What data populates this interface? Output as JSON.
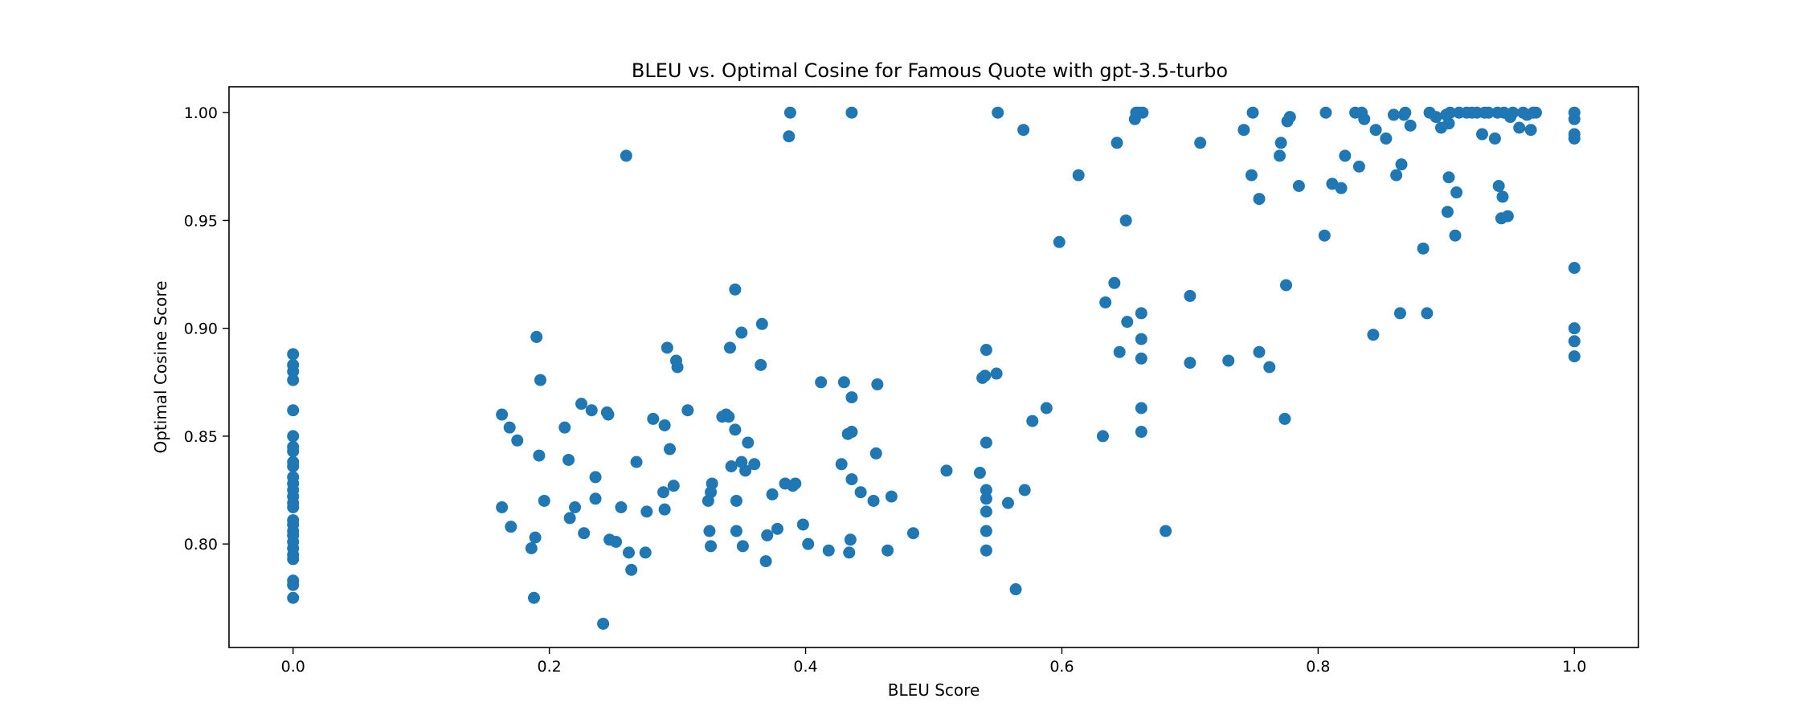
{
  "chart_data": {
    "type": "scatter",
    "title": "BLEU vs. Optimal Cosine for Famous Quote with gpt-3.5-turbo",
    "xlabel": "BLEU Score",
    "ylabel": "Optimal Cosine Score",
    "xlim": [
      -0.05,
      1.05
    ],
    "ylim": [
      1.012,
      0.752
    ],
    "y_inverted": true,
    "xticks": [
      0.0,
      0.2,
      0.4,
      0.6,
      0.8,
      1.0
    ],
    "xtick_labels": [
      "0.0",
      "0.2",
      "0.4",
      "0.6",
      "0.8",
      "1.0"
    ],
    "yticks": [
      0.8,
      0.85,
      0.9,
      0.95,
      1.0
    ],
    "ytick_labels": [
      "0.80",
      "0.85",
      "0.90",
      "0.95",
      "1.00"
    ],
    "grid": false,
    "marker_color": "#1f77b4",
    "points": [
      [
        0.0,
        0.775
      ],
      [
        0.0,
        0.781
      ],
      [
        0.0,
        0.783
      ],
      [
        0.0,
        0.793
      ],
      [
        0.0,
        0.795
      ],
      [
        0.0,
        0.798
      ],
      [
        0.0,
        0.801
      ],
      [
        0.0,
        0.804
      ],
      [
        0.0,
        0.806
      ],
      [
        0.0,
        0.809
      ],
      [
        0.0,
        0.811
      ],
      [
        0.0,
        0.817
      ],
      [
        0.0,
        0.819
      ],
      [
        0.0,
        0.822
      ],
      [
        0.0,
        0.825
      ],
      [
        0.0,
        0.828
      ],
      [
        0.0,
        0.831
      ],
      [
        0.0,
        0.836
      ],
      [
        0.0,
        0.838
      ],
      [
        0.0,
        0.843
      ],
      [
        0.0,
        0.845
      ],
      [
        0.0,
        0.85
      ],
      [
        0.0,
        0.862
      ],
      [
        0.0,
        0.876
      ],
      [
        0.0,
        0.88
      ],
      [
        0.0,
        0.883
      ],
      [
        0.0,
        0.888
      ],
      [
        0.163,
        0.817
      ],
      [
        0.163,
        0.86
      ],
      [
        0.169,
        0.854
      ],
      [
        0.17,
        0.808
      ],
      [
        0.175,
        0.848
      ],
      [
        0.186,
        0.798
      ],
      [
        0.188,
        0.775
      ],
      [
        0.189,
        0.803
      ],
      [
        0.19,
        0.896
      ],
      [
        0.192,
        0.841
      ],
      [
        0.193,
        0.876
      ],
      [
        0.196,
        0.82
      ],
      [
        0.212,
        0.854
      ],
      [
        0.215,
        0.839
      ],
      [
        0.216,
        0.812
      ],
      [
        0.22,
        0.817
      ],
      [
        0.225,
        0.865
      ],
      [
        0.227,
        0.805
      ],
      [
        0.233,
        0.862
      ],
      [
        0.236,
        0.821
      ],
      [
        0.236,
        0.831
      ],
      [
        0.242,
        0.763
      ],
      [
        0.245,
        0.861
      ],
      [
        0.246,
        0.86
      ],
      [
        0.247,
        0.802
      ],
      [
        0.252,
        0.801
      ],
      [
        0.256,
        0.817
      ],
      [
        0.26,
        0.98
      ],
      [
        0.262,
        0.796
      ],
      [
        0.264,
        0.788
      ],
      [
        0.268,
        0.838
      ],
      [
        0.275,
        0.796
      ],
      [
        0.276,
        0.815
      ],
      [
        0.281,
        0.858
      ],
      [
        0.289,
        0.824
      ],
      [
        0.29,
        0.855
      ],
      [
        0.29,
        0.816
      ],
      [
        0.292,
        0.891
      ],
      [
        0.294,
        0.844
      ],
      [
        0.297,
        0.827
      ],
      [
        0.299,
        0.885
      ],
      [
        0.3,
        0.882
      ],
      [
        0.308,
        0.862
      ],
      [
        0.324,
        0.82
      ],
      [
        0.325,
        0.806
      ],
      [
        0.326,
        0.799
      ],
      [
        0.326,
        0.824
      ],
      [
        0.327,
        0.828
      ],
      [
        0.335,
        0.859
      ],
      [
        0.338,
        0.86
      ],
      [
        0.34,
        0.859
      ],
      [
        0.341,
        0.891
      ],
      [
        0.342,
        0.836
      ],
      [
        0.345,
        0.853
      ],
      [
        0.345,
        0.918
      ],
      [
        0.346,
        0.806
      ],
      [
        0.346,
        0.82
      ],
      [
        0.35,
        0.898
      ],
      [
        0.35,
        0.838
      ],
      [
        0.351,
        0.799
      ],
      [
        0.353,
        0.834
      ],
      [
        0.355,
        0.847
      ],
      [
        0.36,
        0.837
      ],
      [
        0.365,
        0.883
      ],
      [
        0.366,
        0.902
      ],
      [
        0.369,
        0.792
      ],
      [
        0.37,
        0.804
      ],
      [
        0.374,
        0.823
      ],
      [
        0.378,
        0.807
      ],
      [
        0.384,
        0.828
      ],
      [
        0.387,
        0.989
      ],
      [
        0.388,
        1.0
      ],
      [
        0.39,
        0.827
      ],
      [
        0.392,
        0.828
      ],
      [
        0.398,
        0.809
      ],
      [
        0.402,
        0.8
      ],
      [
        0.412,
        0.875
      ],
      [
        0.418,
        0.797
      ],
      [
        0.428,
        0.837
      ],
      [
        0.43,
        0.875
      ],
      [
        0.433,
        0.851
      ],
      [
        0.434,
        0.796
      ],
      [
        0.435,
        0.802
      ],
      [
        0.436,
        0.852
      ],
      [
        0.436,
        0.868
      ],
      [
        0.436,
        0.83
      ],
      [
        0.436,
        1.0
      ],
      [
        0.443,
        0.824
      ],
      [
        0.453,
        0.82
      ],
      [
        0.455,
        0.842
      ],
      [
        0.456,
        0.874
      ],
      [
        0.464,
        0.797
      ],
      [
        0.467,
        0.822
      ],
      [
        0.484,
        0.805
      ],
      [
        0.51,
        0.834
      ],
      [
        0.536,
        0.833
      ],
      [
        0.538,
        0.877
      ],
      [
        0.54,
        0.878
      ],
      [
        0.541,
        0.847
      ],
      [
        0.541,
        0.821
      ],
      [
        0.541,
        0.815
      ],
      [
        0.541,
        0.806
      ],
      [
        0.541,
        0.825
      ],
      [
        0.541,
        0.797
      ],
      [
        0.541,
        0.89
      ],
      [
        0.549,
        0.879
      ],
      [
        0.55,
        1.0
      ],
      [
        0.558,
        0.819
      ],
      [
        0.564,
        0.779
      ],
      [
        0.57,
        0.992
      ],
      [
        0.571,
        0.825
      ],
      [
        0.577,
        0.857
      ],
      [
        0.588,
        0.863
      ],
      [
        0.598,
        0.94
      ],
      [
        0.613,
        0.971
      ],
      [
        0.632,
        0.85
      ],
      [
        0.634,
        0.912
      ],
      [
        0.641,
        0.921
      ],
      [
        0.643,
        0.986
      ],
      [
        0.645,
        0.889
      ],
      [
        0.65,
        0.95
      ],
      [
        0.651,
        0.903
      ],
      [
        0.657,
        0.997
      ],
      [
        0.658,
        1.0
      ],
      [
        0.66,
        1.0
      ],
      [
        0.662,
        0.852
      ],
      [
        0.662,
        0.863
      ],
      [
        0.662,
        0.886
      ],
      [
        0.662,
        0.895
      ],
      [
        0.662,
        0.907
      ],
      [
        0.663,
        1.0
      ],
      [
        0.681,
        0.806
      ],
      [
        0.7,
        0.884
      ],
      [
        0.7,
        0.915
      ],
      [
        0.708,
        0.986
      ],
      [
        0.73,
        0.885
      ],
      [
        0.742,
        0.992
      ],
      [
        0.748,
        0.971
      ],
      [
        0.749,
        1.0
      ],
      [
        0.754,
        0.96
      ],
      [
        0.754,
        0.889
      ],
      [
        0.762,
        0.882
      ],
      [
        0.77,
        0.98
      ],
      [
        0.771,
        0.986
      ],
      [
        0.774,
        0.858
      ],
      [
        0.775,
        0.92
      ],
      [
        0.776,
        0.996
      ],
      [
        0.778,
        0.998
      ],
      [
        0.785,
        0.966
      ],
      [
        0.805,
        0.943
      ],
      [
        0.806,
        1.0
      ],
      [
        0.811,
        0.967
      ],
      [
        0.818,
        0.965
      ],
      [
        0.821,
        0.98
      ],
      [
        0.829,
        1.0
      ],
      [
        0.832,
        0.975
      ],
      [
        0.834,
        1.0
      ],
      [
        0.836,
        0.997
      ],
      [
        0.843,
        0.897
      ],
      [
        0.845,
        0.992
      ],
      [
        0.853,
        0.988
      ],
      [
        0.859,
        0.999
      ],
      [
        0.861,
        0.971
      ],
      [
        0.864,
        0.907
      ],
      [
        0.865,
        0.976
      ],
      [
        0.867,
        0.999
      ],
      [
        0.868,
        1.0
      ],
      [
        0.872,
        0.994
      ],
      [
        0.882,
        0.937
      ],
      [
        0.885,
        0.907
      ],
      [
        0.887,
        1.0
      ],
      [
        0.892,
        0.998
      ],
      [
        0.896,
        0.993
      ],
      [
        0.9,
        0.999
      ],
      [
        0.901,
        0.954
      ],
      [
        0.902,
        0.97
      ],
      [
        0.902,
        0.995
      ],
      [
        0.903,
        1.0
      ],
      [
        0.907,
        0.943
      ],
      [
        0.908,
        0.963
      ],
      [
        0.91,
        1.0
      ],
      [
        0.916,
        1.0
      ],
      [
        0.92,
        1.0
      ],
      [
        0.924,
        1.0
      ],
      [
        0.928,
        0.99
      ],
      [
        0.93,
        1.0
      ],
      [
        0.933,
        1.0
      ],
      [
        0.938,
        0.988
      ],
      [
        0.94,
        1.0
      ],
      [
        0.941,
        0.966
      ],
      [
        0.943,
        0.951
      ],
      [
        0.944,
        0.961
      ],
      [
        0.945,
        1.0
      ],
      [
        0.948,
        0.952
      ],
      [
        0.95,
        0.998
      ],
      [
        0.952,
        1.0
      ],
      [
        0.957,
        0.993
      ],
      [
        0.96,
        1.0
      ],
      [
        0.963,
        0.999
      ],
      [
        0.966,
        0.992
      ],
      [
        0.968,
        1.0
      ],
      [
        0.97,
        1.0
      ],
      [
        1.0,
        0.887
      ],
      [
        1.0,
        0.894
      ],
      [
        1.0,
        0.9
      ],
      [
        1.0,
        0.928
      ],
      [
        1.0,
        0.988
      ],
      [
        1.0,
        0.99
      ],
      [
        1.0,
        0.997
      ],
      [
        1.0,
        1.0
      ]
    ]
  }
}
